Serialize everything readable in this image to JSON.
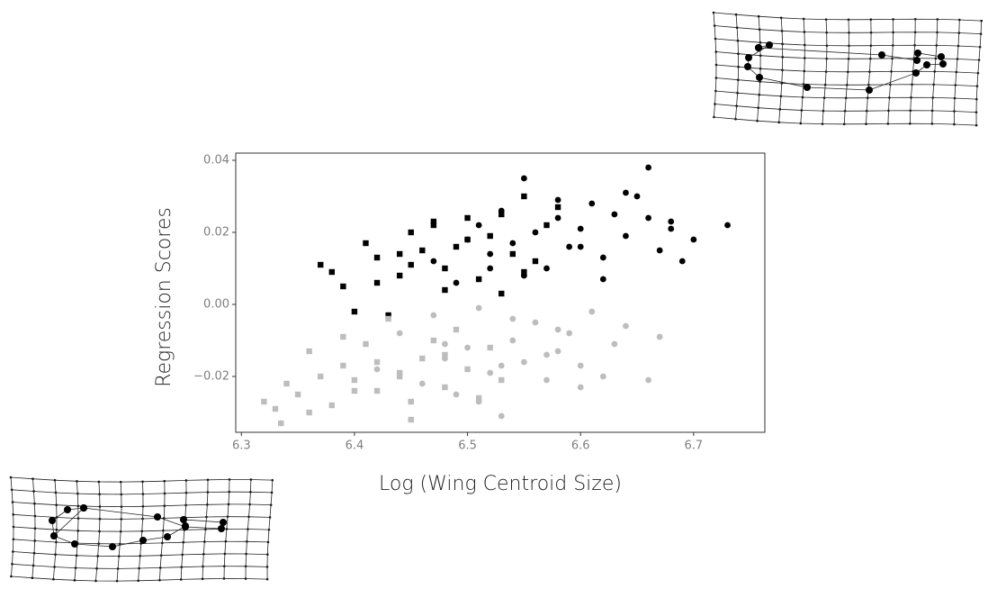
{
  "chart_data": {
    "type": "scatter",
    "x_label": "Log (Wing Centroid Size)",
    "y_label": "Regression Scores",
    "xlim": [
      6.295,
      6.763
    ],
    "ylim": [
      -0.0355,
      0.042
    ],
    "xticks": [
      6.3,
      6.4,
      6.5,
      6.6,
      6.7
    ],
    "yticks": [
      {
        "value": -0.02,
        "label": "−0.02"
      },
      {
        "value": 0,
        "label": "0.00"
      },
      0.02,
      0.04
    ],
    "grid": false,
    "series": [
      {
        "color": "#000000",
        "marker": "square",
        "x": [
          6.37,
          6.38,
          6.39,
          6.4,
          6.41,
          6.42,
          6.43,
          6.44,
          6.45,
          6.46,
          6.47,
          6.48,
          6.49,
          6.5,
          6.51,
          6.52,
          6.53,
          6.54,
          6.55,
          6.56,
          6.57,
          6.58,
          6.42,
          6.45,
          6.48,
          6.5,
          6.53,
          6.55,
          6.44,
          6.47
        ],
        "y": [
          0.011,
          0.009,
          0.005,
          -0.002,
          0.017,
          0.013,
          -0.003,
          0.008,
          0.02,
          0.015,
          0.022,
          0.01,
          0.016,
          0.024,
          0.007,
          0.019,
          0.025,
          0.014,
          0.03,
          0.012,
          0.022,
          0.027,
          0.006,
          0.011,
          0.004,
          0.018,
          0.003,
          0.009,
          0.014,
          0.023
        ]
      },
      {
        "color": "#000000",
        "marker": "circle",
        "x": [
          6.47,
          6.49,
          6.5,
          6.51,
          6.52,
          6.53,
          6.54,
          6.55,
          6.56,
          6.57,
          6.58,
          6.59,
          6.6,
          6.61,
          6.62,
          6.63,
          6.64,
          6.65,
          6.66,
          6.67,
          6.68,
          6.69,
          6.7,
          6.73,
          6.55,
          6.58,
          6.62,
          6.66,
          6.52,
          6.6,
          6.64,
          6.68
        ],
        "y": [
          0.012,
          0.006,
          0.018,
          0.022,
          0.014,
          0.026,
          0.017,
          0.035,
          0.02,
          0.01,
          0.024,
          0.016,
          0.021,
          0.028,
          0.013,
          0.025,
          0.019,
          0.03,
          0.038,
          0.015,
          0.023,
          0.012,
          0.018,
          0.022,
          0.008,
          0.029,
          0.007,
          0.024,
          0.01,
          0.016,
          0.031,
          0.021
        ]
      },
      {
        "color": "#bdbdbd",
        "marker": "square",
        "x": [
          6.32,
          6.33,
          6.335,
          6.34,
          6.35,
          6.36,
          6.37,
          6.38,
          6.39,
          6.4,
          6.41,
          6.42,
          6.43,
          6.44,
          6.45,
          6.46,
          6.47,
          6.48,
          6.49,
          6.5,
          6.51,
          6.52,
          6.53,
          6.36,
          6.39,
          6.42,
          6.45,
          6.48,
          6.4,
          6.44
        ],
        "y": [
          -0.027,
          -0.029,
          -0.033,
          -0.022,
          -0.025,
          -0.013,
          -0.02,
          -0.028,
          -0.017,
          -0.021,
          -0.011,
          -0.024,
          -0.004,
          -0.019,
          -0.032,
          -0.015,
          -0.01,
          -0.023,
          -0.007,
          -0.018,
          -0.026,
          -0.012,
          -0.021,
          -0.03,
          -0.009,
          -0.016,
          -0.027,
          -0.014,
          -0.024,
          -0.02
        ]
      },
      {
        "color": "#bdbdbd",
        "marker": "circle",
        "x": [
          6.42,
          6.44,
          6.46,
          6.47,
          6.48,
          6.49,
          6.5,
          6.51,
          6.52,
          6.53,
          6.54,
          6.55,
          6.56,
          6.57,
          6.58,
          6.59,
          6.6,
          6.61,
          6.62,
          6.63,
          6.64,
          6.66,
          6.67,
          6.51,
          6.54,
          6.57,
          6.6,
          6.48,
          6.53,
          6.58
        ],
        "y": [
          -0.018,
          -0.008,
          -0.022,
          -0.003,
          -0.015,
          -0.025,
          -0.012,
          -0.001,
          -0.019,
          -0.031,
          -0.01,
          -0.016,
          -0.005,
          -0.021,
          -0.013,
          -0.008,
          -0.017,
          -0.002,
          -0.02,
          -0.011,
          -0.006,
          -0.021,
          -0.009,
          -0.027,
          -0.004,
          -0.014,
          -0.023,
          -0.011,
          -0.017,
          -0.007
        ]
      }
    ]
  }
}
